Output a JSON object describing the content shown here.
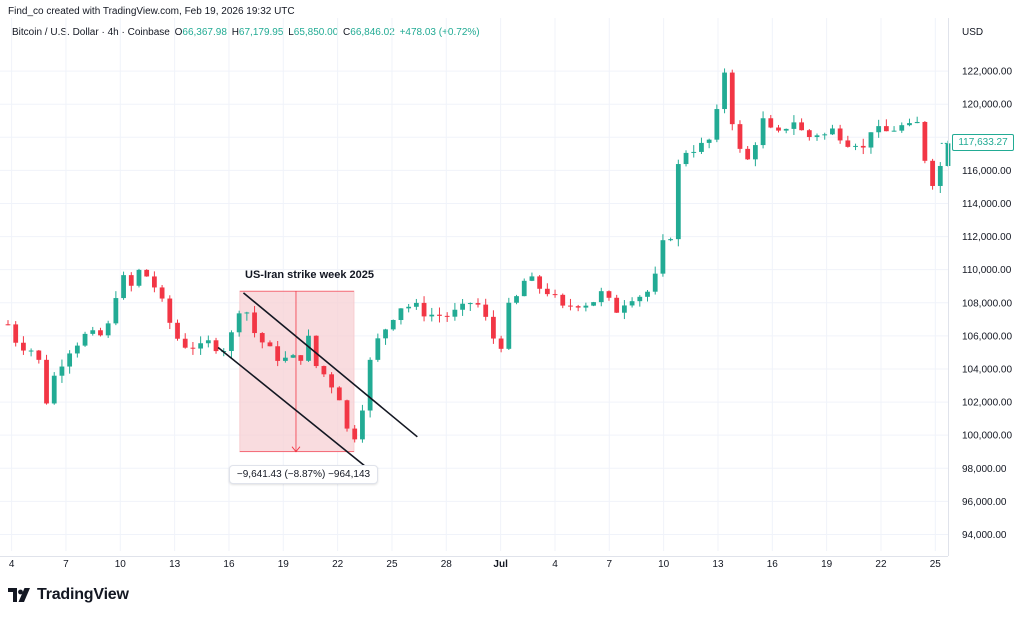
{
  "header": {
    "text": "Find_co created with TradingView.com, Feb 19, 2026 19:32 UTC"
  },
  "legend": {
    "symbol": "Bitcoin / U.S. Dollar · 4h · Coinbase",
    "o_label": "O",
    "o_value": "66,367.98",
    "h_label": "H",
    "h_value": "67,179.95",
    "l_label": "L",
    "l_value": "65,850.00",
    "c_label": "C",
    "c_value": "66,846.02",
    "change": "+478.03 (+0.72%)"
  },
  "currency": "USD",
  "annotation": {
    "title": "US-Iran strike week 2025"
  },
  "measure": {
    "text": "−9,641.43 (−8.87%) −964,143"
  },
  "last_price": {
    "text": "117,633.27"
  },
  "brand": {
    "name": "TradingView"
  },
  "colors": {
    "up": "#22ab94",
    "down": "#f23645",
    "grid": "#f0f3fa",
    "measure_fill": "#f7cdd1",
    "measure_line": "#f23645"
  },
  "chart_data": {
    "type": "candlestick",
    "xlabel": "",
    "ylabel": "",
    "y_ticks": [
      {
        "value": 94000,
        "label": "94,000.00"
      },
      {
        "value": 96000,
        "label": "96,000.00"
      },
      {
        "value": 98000,
        "label": "98,000.00"
      },
      {
        "value": 100000,
        "label": "100,000.00"
      },
      {
        "value": 102000,
        "label": "102,000.00"
      },
      {
        "value": 104000,
        "label": "104,000.00"
      },
      {
        "value": 106000,
        "label": "106,000.00"
      },
      {
        "value": 108000,
        "label": "108,000.00"
      },
      {
        "value": 110000,
        "label": "110,000.00"
      },
      {
        "value": 112000,
        "label": "112,000.00"
      },
      {
        "value": 114000,
        "label": "114,000.00"
      },
      {
        "value": 116000,
        "label": "116,000.00"
      },
      {
        "value": 118000,
        "label": "118,000.00"
      },
      {
        "value": 120000,
        "label": "120,000.00"
      },
      {
        "value": 122000,
        "label": "122,000.00"
      }
    ],
    "ylim": [
      93000,
      124000
    ],
    "x_ticks": [
      {
        "day": 4,
        "label": "4"
      },
      {
        "day": 7,
        "label": "7"
      },
      {
        "day": 10,
        "label": "10"
      },
      {
        "day": 13,
        "label": "13"
      },
      {
        "day": 16,
        "label": "16"
      },
      {
        "day": 19,
        "label": "19"
      },
      {
        "day": 22,
        "label": "22"
      },
      {
        "day": 25,
        "label": "25"
      },
      {
        "day": 28,
        "label": "28"
      },
      {
        "day": 31,
        "label": "Jul"
      },
      {
        "day": 34,
        "label": "4"
      },
      {
        "day": 37,
        "label": "7"
      },
      {
        "day": 40,
        "label": "10"
      },
      {
        "day": 43,
        "label": "13"
      },
      {
        "day": 46,
        "label": "16"
      },
      {
        "day": 49,
        "label": "19"
      },
      {
        "day": 52,
        "label": "22"
      },
      {
        "day": 55,
        "label": "25"
      }
    ],
    "xlim": [
      3.8,
      55.7
    ],
    "anchors": [
      [
        3.8,
        106700
      ],
      [
        4.3,
        105600
      ],
      [
        5.4,
        105000
      ],
      [
        6.0,
        101700
      ],
      [
        6.4,
        103800
      ],
      [
        7.2,
        105200
      ],
      [
        8.0,
        106000
      ],
      [
        9.2,
        106000
      ],
      [
        9.5,
        107300
      ],
      [
        10.0,
        109800
      ],
      [
        10.5,
        108700
      ],
      [
        11.0,
        109900
      ],
      [
        11.5,
        109600
      ],
      [
        12.0,
        108800
      ],
      [
        12.5,
        107400
      ],
      [
        13.0,
        106100
      ],
      [
        13.4,
        105500
      ],
      [
        14.0,
        105400
      ],
      [
        14.5,
        105200
      ],
      [
        15.0,
        105700
      ],
      [
        15.5,
        105200
      ],
      [
        16.0,
        105400
      ],
      [
        16.4,
        107300
      ],
      [
        16.8,
        108300
      ],
      [
        17.2,
        106500
      ],
      [
        17.7,
        105800
      ],
      [
        18.5,
        104800
      ],
      [
        19.3,
        104500
      ],
      [
        20.0,
        104800
      ],
      [
        20.4,
        105800
      ],
      [
        20.8,
        104200
      ],
      [
        21.4,
        103500
      ],
      [
        21.9,
        102700
      ],
      [
        22.3,
        102000
      ],
      [
        22.7,
        98900
      ],
      [
        23.2,
        101200
      ],
      [
        23.6,
        102700
      ],
      [
        23.9,
        105300
      ],
      [
        24.3,
        105800
      ],
      [
        24.8,
        106800
      ],
      [
        25.4,
        107800
      ],
      [
        26.2,
        107800
      ],
      [
        27.0,
        107300
      ],
      [
        28.0,
        107200
      ],
      [
        28.8,
        107500
      ],
      [
        29.5,
        108200
      ],
      [
        30.0,
        107500
      ],
      [
        30.5,
        106000
      ],
      [
        31.0,
        105400
      ],
      [
        31.5,
        107900
      ],
      [
        32.0,
        108400
      ],
      [
        32.4,
        109600
      ],
      [
        33.0,
        109000
      ],
      [
        33.6,
        108700
      ],
      [
        34.0,
        108200
      ],
      [
        34.5,
        107500
      ],
      [
        35.0,
        108000
      ],
      [
        36.0,
        108000
      ],
      [
        36.5,
        108600
      ],
      [
        37.0,
        108000
      ],
      [
        37.5,
        107500
      ],
      [
        38.0,
        108400
      ],
      [
        39.0,
        108500
      ],
      [
        39.5,
        109300
      ],
      [
        39.9,
        111500
      ],
      [
        40.3,
        111300
      ],
      [
        40.8,
        116200
      ],
      [
        41.2,
        117200
      ],
      [
        41.8,
        117400
      ],
      [
        42.3,
        117500
      ],
      [
        42.8,
        118200
      ],
      [
        43.3,
        122500
      ],
      [
        43.7,
        119500
      ],
      [
        44.1,
        117500
      ],
      [
        44.5,
        116200
      ],
      [
        45.0,
        117600
      ],
      [
        45.5,
        119000
      ],
      [
        46.0,
        118200
      ],
      [
        46.5,
        118100
      ],
      [
        47.0,
        119200
      ],
      [
        47.5,
        118700
      ],
      [
        47.8,
        117800
      ],
      [
        48.3,
        118300
      ],
      [
        49.0,
        118100
      ],
      [
        49.5,
        118600
      ],
      [
        50.0,
        117700
      ],
      [
        50.5,
        117900
      ],
      [
        51.0,
        117200
      ],
      [
        51.5,
        118700
      ],
      [
        52.0,
        118200
      ],
      [
        52.5,
        118400
      ],
      [
        53.0,
        118700
      ],
      [
        53.5,
        118500
      ],
      [
        54.0,
        118800
      ],
      [
        54.3,
        117500
      ],
      [
        54.7,
        115100
      ],
      [
        55.2,
        116000
      ],
      [
        55.7,
        117633
      ]
    ],
    "candles_per_day": 2.35,
    "last_close": 117633.27,
    "annotations": {
      "channel_upper": {
        "p1": [
          16.8,
          108600
        ],
        "p2": [
          26.4,
          99900
        ]
      },
      "channel_lower": {
        "p1": [
          15.4,
          105300
        ],
        "p2": [
          24.0,
          97700
        ]
      },
      "measure": {
        "x0": 16.6,
        "x1": 22.9,
        "top": 108700,
        "bottom": 99000,
        "arrow_x": 19.7
      }
    }
  }
}
